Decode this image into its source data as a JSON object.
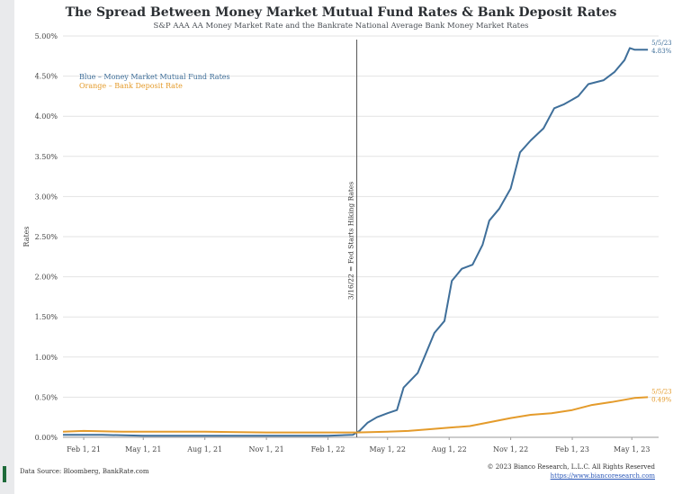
{
  "chart_data": {
    "type": "line",
    "title": "The Spread Between Money Market Mutual Fund Rates & Bank Deposit Rates",
    "subtitle": "S&P AAA AA Money Market Rate and the Bankrate National Average Bank Money Market Rates",
    "ylabel": "Rates",
    "xlabel": "",
    "ylim": [
      0,
      5.0
    ],
    "xlim": [
      "2021-01-01",
      "2023-06-10"
    ],
    "yticks": [
      0,
      0.5,
      1.0,
      1.5,
      2.0,
      2.5,
      3.0,
      3.5,
      4.0,
      4.5,
      5.0
    ],
    "ytick_labels": [
      "0.00%",
      "0.50%",
      "1.00%",
      "1.50%",
      "2.00%",
      "2.50%",
      "3.00%",
      "3.50%",
      "4.00%",
      "4.50%",
      "5.00%"
    ],
    "xticks": [
      "2021-02-01",
      "2021-05-01",
      "2021-08-01",
      "2021-11-01",
      "2022-02-01",
      "2022-05-01",
      "2022-08-01",
      "2022-11-01",
      "2023-02-01",
      "2023-05-01"
    ],
    "xtick_labels": [
      "Feb 1, 21",
      "May 1, 21",
      "Aug 1, 21",
      "Nov 1, 21",
      "Feb 1, 22",
      "May 1, 22",
      "Aug 1, 22",
      "Nov 1, 22",
      "Feb 1, 23",
      "May 1, 23"
    ],
    "legend": {
      "placement": "top-left",
      "entries": [
        "Blue – Money Market Mutual Fund Rates",
        "Orange – Bank Deposit Rate"
      ]
    },
    "vline": {
      "x": "2022-03-16",
      "label": "3/16/22 = Fed Starts Hiking Rates"
    },
    "series": [
      {
        "name": "Money Market Mutual Fund Rates",
        "color": "#3f6f9a",
        "end_label_date": "5/5/23",
        "end_label_value": "4.83%",
        "points": [
          [
            "2021-01-01",
            0.03
          ],
          [
            "2021-03-01",
            0.03
          ],
          [
            "2021-05-01",
            0.02
          ],
          [
            "2021-08-01",
            0.02
          ],
          [
            "2021-11-01",
            0.02
          ],
          [
            "2022-02-01",
            0.02
          ],
          [
            "2022-03-10",
            0.03
          ],
          [
            "2022-03-20",
            0.08
          ],
          [
            "2022-04-01",
            0.18
          ],
          [
            "2022-04-15",
            0.25
          ],
          [
            "2022-05-01",
            0.3
          ],
          [
            "2022-05-15",
            0.34
          ],
          [
            "2022-05-25",
            0.62
          ],
          [
            "2022-06-15",
            0.8
          ],
          [
            "2022-06-25",
            1.0
          ],
          [
            "2022-07-10",
            1.3
          ],
          [
            "2022-07-25",
            1.45
          ],
          [
            "2022-08-05",
            1.95
          ],
          [
            "2022-08-20",
            2.1
          ],
          [
            "2022-09-05",
            2.15
          ],
          [
            "2022-09-20",
            2.4
          ],
          [
            "2022-09-30",
            2.7
          ],
          [
            "2022-10-15",
            2.85
          ],
          [
            "2022-11-01",
            3.1
          ],
          [
            "2022-11-15",
            3.55
          ],
          [
            "2022-12-01",
            3.7
          ],
          [
            "2022-12-20",
            3.85
          ],
          [
            "2023-01-05",
            4.1
          ],
          [
            "2023-01-20",
            4.15
          ],
          [
            "2023-02-10",
            4.25
          ],
          [
            "2023-02-25",
            4.4
          ],
          [
            "2023-03-20",
            4.45
          ],
          [
            "2023-04-05",
            4.55
          ],
          [
            "2023-04-20",
            4.7
          ],
          [
            "2023-04-28",
            4.85
          ],
          [
            "2023-05-05",
            4.83
          ],
          [
            "2023-05-25",
            4.83
          ]
        ]
      },
      {
        "name": "Bank Deposit Rate",
        "color": "#e49b2b",
        "end_label_date": "5/5/23",
        "end_label_value": "0.49%",
        "points": [
          [
            "2021-01-01",
            0.07
          ],
          [
            "2021-02-01",
            0.08
          ],
          [
            "2021-04-01",
            0.07
          ],
          [
            "2021-08-01",
            0.07
          ],
          [
            "2021-11-01",
            0.06
          ],
          [
            "2022-02-01",
            0.06
          ],
          [
            "2022-03-16",
            0.06
          ],
          [
            "2022-05-01",
            0.07
          ],
          [
            "2022-06-01",
            0.08
          ],
          [
            "2022-07-01",
            0.1
          ],
          [
            "2022-08-01",
            0.12
          ],
          [
            "2022-09-01",
            0.14
          ],
          [
            "2022-10-01",
            0.19
          ],
          [
            "2022-11-01",
            0.24
          ],
          [
            "2022-12-01",
            0.28
          ],
          [
            "2023-01-01",
            0.3
          ],
          [
            "2023-02-01",
            0.34
          ],
          [
            "2023-03-01",
            0.4
          ],
          [
            "2023-04-01",
            0.44
          ],
          [
            "2023-05-05",
            0.49
          ],
          [
            "2023-05-25",
            0.5
          ]
        ]
      }
    ]
  },
  "footer": {
    "source": "Data Source: Bloomberg, BankRate.com",
    "copyright": "© 2023 Bianco Research, L.L.C. All Rights Reserved",
    "url": "https://www.biancoresearch.com"
  }
}
